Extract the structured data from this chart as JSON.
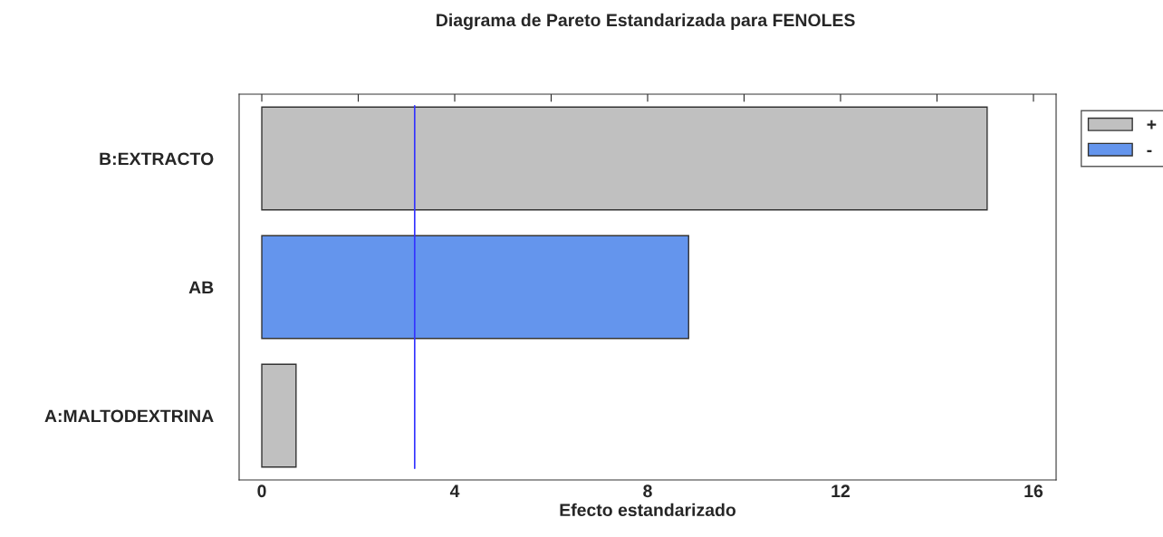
{
  "chart_data": {
    "type": "bar",
    "orientation": "horizontal",
    "title": "Diagrama de Pareto Estandarizada para FENOLES",
    "xlabel": "Efecto estandarizado",
    "categories": [
      "B:EXTRACTO",
      "AB",
      "A:MALTODEXTRINA"
    ],
    "series": [
      {
        "name": "+",
        "color": "#c0c0c0",
        "values": [
          15.04,
          null,
          0.71
        ]
      },
      {
        "name": "-",
        "color": "#6495ed",
        "values": [
          null,
          8.85,
          null
        ]
      }
    ],
    "xlim": [
      -0.47,
      16.47
    ],
    "xticks": [
      0,
      {
        "value": 2,
        "label": null
      },
      4,
      {
        "value": 6,
        "label": null
      },
      8,
      {
        "value": 10,
        "label": null
      },
      12,
      {
        "value": 14,
        "label": null
      },
      16
    ],
    "ref_lines": [
      {
        "axis": "x",
        "value": 3.17,
        "color": "#3333ff"
      }
    ],
    "grid": false,
    "legend": "top right"
  }
}
